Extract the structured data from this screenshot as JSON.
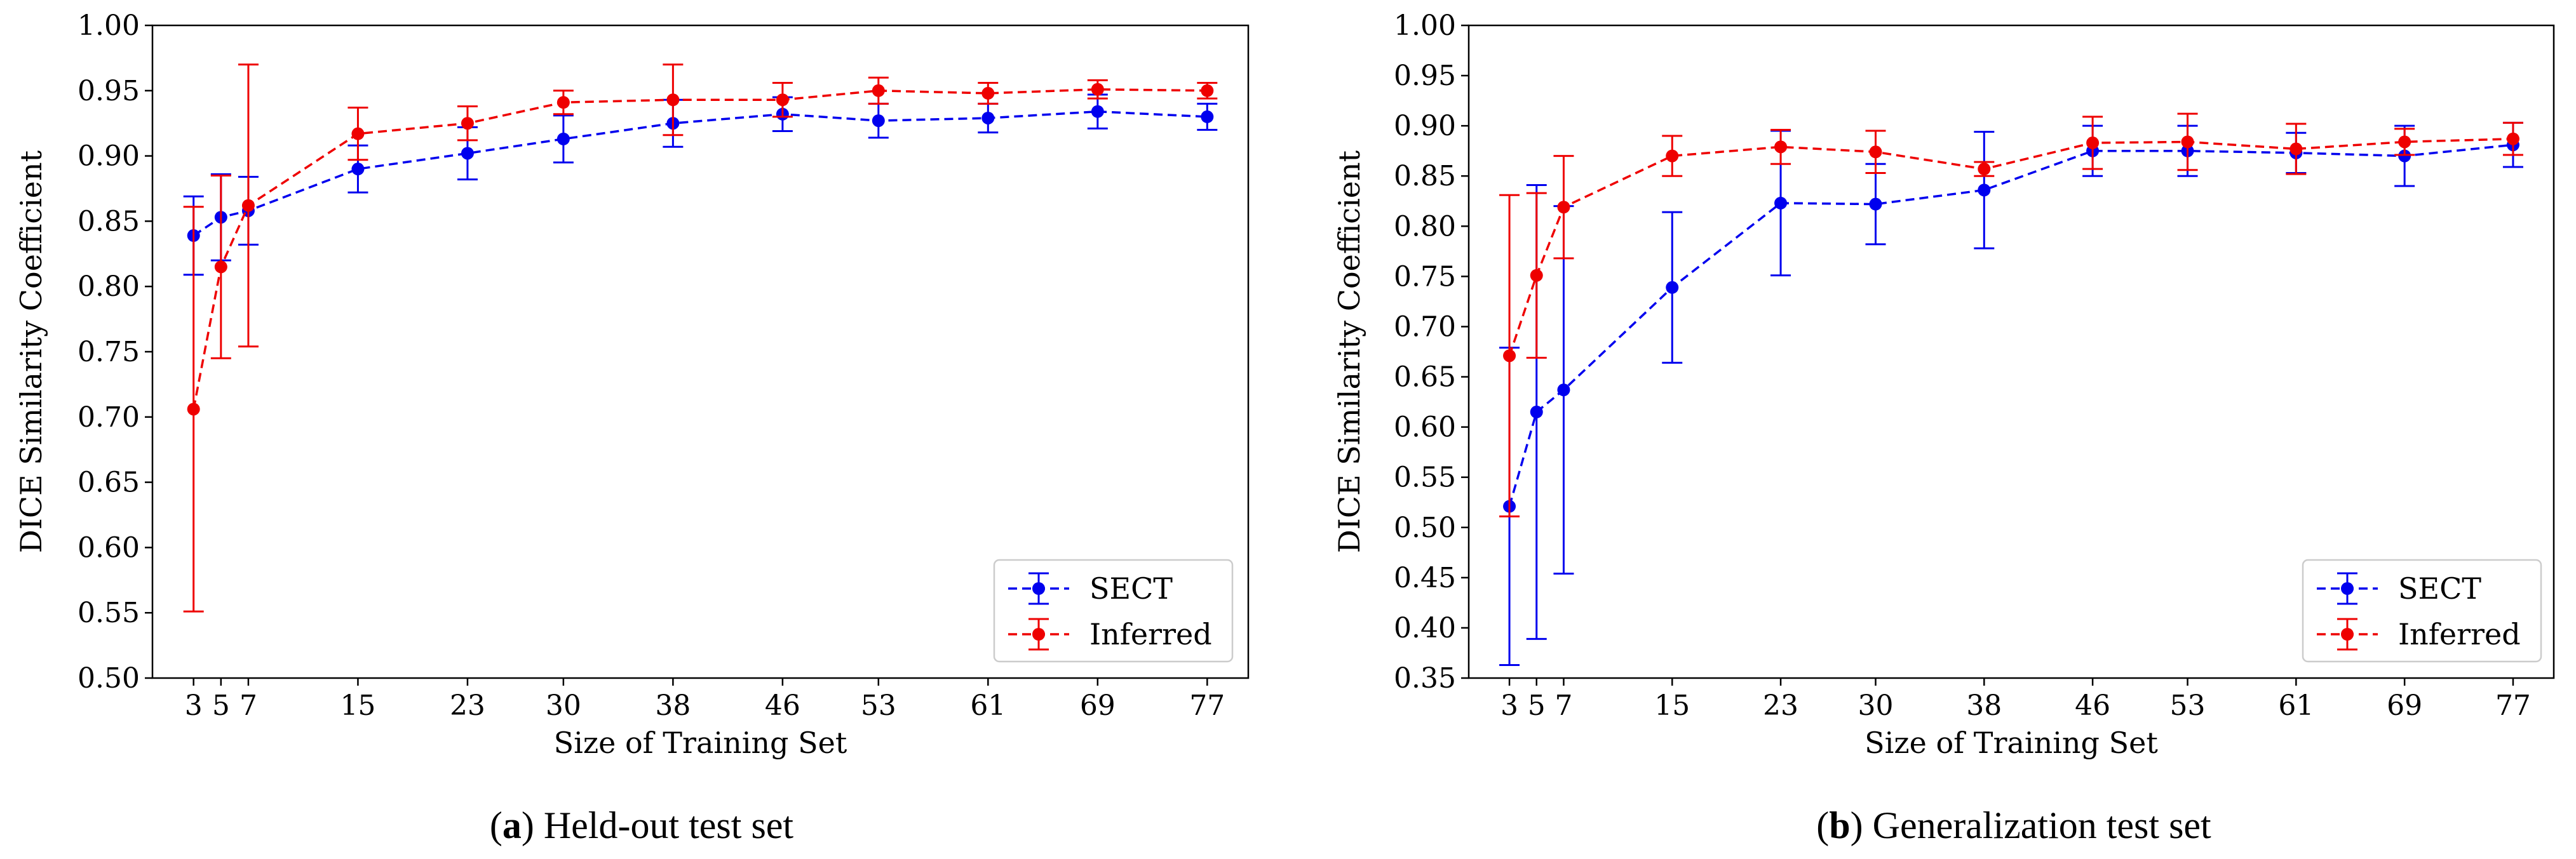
{
  "figure": {
    "panels": [
      {
        "caption_letter": "a",
        "caption_text": "Held-out test set"
      },
      {
        "caption_letter": "b",
        "caption_text": "Generalization test set"
      }
    ]
  },
  "chart_data": [
    {
      "type": "line",
      "error_bars": true,
      "title": "",
      "xlabel": "Size of Training Set",
      "ylabel": "DICE Similarity Coefficient",
      "x": [
        3,
        5,
        7,
        15,
        23,
        30,
        38,
        46,
        53,
        61,
        69,
        77
      ],
      "xticks": [
        3,
        5,
        7,
        15,
        23,
        30,
        38,
        46,
        53,
        61,
        69,
        77
      ],
      "ylim": [
        0.5,
        1.0
      ],
      "yticks": [
        "0.50",
        "0.55",
        "0.60",
        "0.65",
        "0.70",
        "0.75",
        "0.80",
        "0.85",
        "0.90",
        "0.95",
        "1.00"
      ],
      "legend": {
        "position": "lower-right"
      },
      "series": [
        {
          "name": "SECT",
          "color": "#0000ee",
          "values": [
            0.839,
            0.853,
            0.858,
            0.89,
            0.902,
            0.913,
            0.925,
            0.932,
            0.927,
            0.929,
            0.934,
            0.93
          ],
          "errors": [
            0.03,
            0.033,
            0.026,
            0.018,
            0.02,
            0.018,
            0.018,
            0.013,
            0.013,
            0.011,
            0.013,
            0.01
          ]
        },
        {
          "name": "Inferred",
          "color": "#ee0000",
          "values": [
            0.706,
            0.815,
            0.862,
            0.917,
            0.925,
            0.941,
            0.943,
            0.943,
            0.95,
            0.948,
            0.951,
            0.95
          ],
          "errors": [
            0.155,
            0.07,
            0.108,
            0.02,
            0.013,
            0.009,
            0.027,
            0.013,
            0.01,
            0.008,
            0.007,
            0.006
          ]
        }
      ]
    },
    {
      "type": "line",
      "error_bars": true,
      "title": "",
      "xlabel": "Size of Training Set",
      "ylabel": "DICE Similarity Coefficient",
      "x": [
        3,
        5,
        7,
        15,
        23,
        30,
        38,
        46,
        53,
        61,
        69,
        77
      ],
      "xticks": [
        3,
        5,
        7,
        15,
        23,
        30,
        38,
        46,
        53,
        61,
        69,
        77
      ],
      "ylim": [
        0.35,
        1.0
      ],
      "yticks": [
        "0.35",
        "0.40",
        "0.45",
        "0.50",
        "0.55",
        "0.60",
        "0.65",
        "0.70",
        "0.75",
        "0.80",
        "0.85",
        "0.90",
        "0.95",
        "1.00"
      ],
      "legend": {
        "position": "lower-right"
      },
      "series": [
        {
          "name": "SECT",
          "color": "#0000ee",
          "values": [
            0.521,
            0.615,
            0.637,
            0.739,
            0.823,
            0.822,
            0.836,
            0.875,
            0.875,
            0.873,
            0.87,
            0.881
          ],
          "errors": [
            0.158,
            0.226,
            0.183,
            0.075,
            0.072,
            0.04,
            0.058,
            0.025,
            0.025,
            0.02,
            0.03,
            0.022
          ]
        },
        {
          "name": "Inferred",
          "color": "#ee0000",
          "values": [
            0.671,
            0.751,
            0.819,
            0.87,
            0.879,
            0.874,
            0.857,
            0.883,
            0.884,
            0.877,
            0.884,
            0.887
          ],
          "errors": [
            0.16,
            0.082,
            0.051,
            0.02,
            0.017,
            0.021,
            0.007,
            0.026,
            0.028,
            0.025,
            0.013,
            0.016
          ]
        }
      ]
    }
  ]
}
